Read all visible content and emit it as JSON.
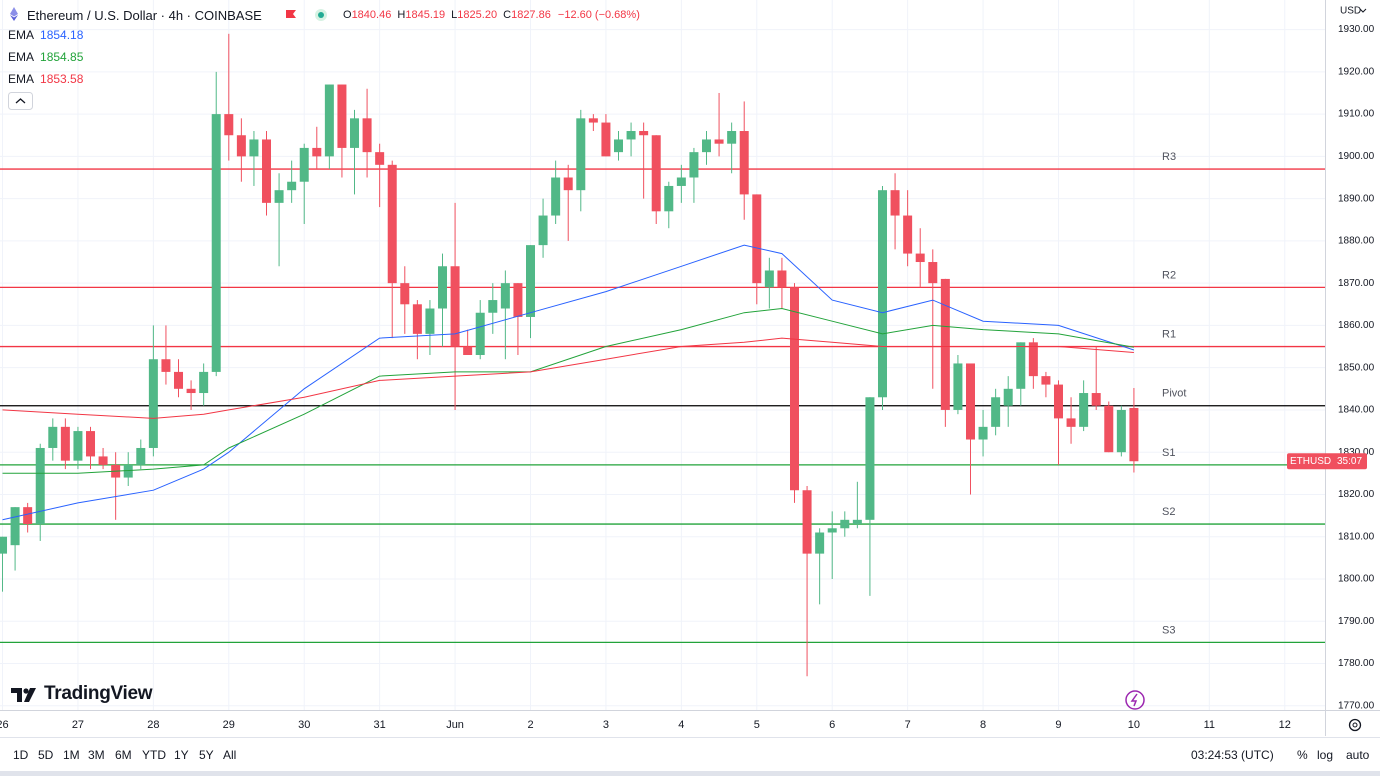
{
  "header": {
    "title": "Ethereum / U.S. Dollar · 4h · COINBASE",
    "o_label": "O",
    "h_label": "H",
    "l_label": "L",
    "c_label": "C",
    "open": "1840.46",
    "high": "1845.19",
    "low": "1825.20",
    "close": "1827.86",
    "change": "−12.60 (−0.68%)"
  },
  "currency": "USD",
  "brand": "TradingView",
  "price_tag": {
    "symbol": "ETHUSD",
    "countdown": "35:07"
  },
  "toolbar": {
    "ranges": [
      "1D",
      "5D",
      "1M",
      "3M",
      "6M",
      "YTD",
      "1Y",
      "5Y",
      "All"
    ],
    "clock": "03:24:53 (UTC)",
    "options": [
      "%",
      "log",
      "auto"
    ]
  },
  "chart_data": {
    "type": "candlestick",
    "categories": [
      null,
      null,
      null,
      null,
      null,
      null,
      null,
      null,
      null,
      null,
      null,
      null,
      null,
      null,
      null,
      null,
      null,
      null,
      null,
      null,
      null,
      null,
      null,
      null,
      null,
      null,
      null,
      null,
      null,
      null,
      null,
      null,
      null,
      null,
      null,
      null,
      null,
      null,
      null,
      null,
      null,
      null,
      null,
      null,
      null,
      null,
      null,
      null,
      null,
      null,
      null,
      null,
      null,
      null,
      null,
      null,
      null,
      null,
      null,
      null,
      null,
      null,
      null,
      null,
      null,
      null,
      null,
      null,
      null,
      null,
      null,
      null,
      null,
      null,
      null,
      null,
      null,
      null,
      null,
      null,
      null,
      null,
      null,
      null,
      null,
      null,
      null,
      null,
      null,
      null,
      null
    ],
    "candles": {
      "up_color": "#51b887",
      "down_color": "#f0505f",
      "open": [
        1806,
        1808,
        1817,
        1813,
        1831,
        1836,
        1828,
        1835,
        1829,
        1827,
        1824,
        1827,
        1831,
        1852,
        1849,
        1845,
        1844,
        1849,
        1910,
        1905,
        1900,
        1904,
        1889,
        1892,
        1894,
        1902,
        1900,
        1917,
        1902,
        1909,
        1901,
        1898,
        1870,
        1865,
        1858,
        1864,
        1874,
        1855,
        1853,
        1863,
        1864,
        1870,
        1862,
        1879,
        1886,
        1895,
        1892,
        1909,
        1908,
        1901,
        1904,
        1906,
        1905,
        1887,
        1893,
        1895,
        1901,
        1904,
        1903,
        1906,
        1891,
        1869,
        1873,
        1869,
        1821,
        1806,
        1811,
        1812,
        1813,
        1814,
        1843,
        1892,
        1886,
        1877,
        1875,
        1871,
        1840,
        1851,
        1833,
        1836,
        1841,
        1845,
        1856,
        1848,
        1846,
        1838,
        1836,
        1844,
        1841,
        1830,
        1840.46
      ],
      "high": [
        1810,
        1817,
        1818,
        1832,
        1838,
        1838,
        1836,
        1836,
        1831,
        1830,
        1830,
        1833,
        1860,
        1860,
        1852,
        1847,
        1851,
        1920,
        1929,
        1909,
        1906,
        1906,
        1896,
        1899,
        1903,
        1907,
        1917,
        1917,
        1911,
        1916,
        1903,
        1899,
        1874,
        1866,
        1866,
        1877,
        1889,
        1859,
        1866,
        1870,
        1873,
        1870,
        1879,
        1890,
        1899,
        1898,
        1911,
        1910,
        1910,
        1906,
        1908,
        1908,
        1905,
        1894,
        1898,
        1902,
        1906,
        1915,
        1908,
        1913,
        1891,
        1876,
        1876,
        1870,
        1822,
        1812,
        1816,
        1816,
        1823,
        1843,
        1893,
        1896,
        1892,
        1883,
        1878,
        1871,
        1853,
        1851,
        1840,
        1845,
        1848,
        1856,
        1857,
        1849,
        1847,
        1843,
        1847,
        1855,
        1842,
        1841,
        1845.19
      ],
      "low": [
        1797,
        1802,
        1811,
        1809,
        1828,
        1826,
        1826,
        1826,
        1826,
        1814,
        1822,
        1826,
        1829,
        1846,
        1843,
        1840,
        1841,
        1848,
        1899,
        1894,
        1893,
        1886,
        1874,
        1889,
        1884,
        1897,
        1897,
        1895,
        1891,
        1895,
        1888,
        1857,
        1858,
        1852,
        1853,
        1855,
        1840,
        1853,
        1852,
        1858,
        1852,
        1853,
        1857,
        1876,
        1884,
        1880,
        1887,
        1906,
        1900,
        1899,
        1900,
        1890,
        1884,
        1883,
        1889,
        1889,
        1898,
        1900,
        1896,
        1885,
        1865,
        1864,
        1864,
        1818,
        1777,
        1794,
        1800,
        1810,
        1812,
        1796,
        1840,
        1878,
        1874,
        1869,
        1845,
        1836,
        1839,
        1820,
        1829,
        1834,
        1836,
        1841,
        1845,
        1843,
        1827,
        1832,
        1835,
        1840,
        1830,
        1829,
        1825.2
      ],
      "close": [
        1810,
        1817,
        1813,
        1831,
        1836,
        1828,
        1835,
        1829,
        1827,
        1824,
        1827,
        1831,
        1852,
        1849,
        1845,
        1844,
        1849,
        1910,
        1905,
        1900,
        1904,
        1889,
        1892,
        1894,
        1902,
        1900,
        1917,
        1902,
        1909,
        1901,
        1898,
        1870,
        1865,
        1858,
        1864,
        1874,
        1855,
        1853,
        1863,
        1866,
        1870,
        1862,
        1879,
        1886,
        1895,
        1892,
        1909,
        1908,
        1900,
        1904,
        1906,
        1905,
        1887,
        1893,
        1895,
        1901,
        1904,
        1903,
        1906,
        1891,
        1870,
        1873,
        1869,
        1821,
        1806,
        1811,
        1812,
        1814,
        1814,
        1843,
        1892,
        1886,
        1877,
        1875,
        1870,
        1840,
        1851,
        1833,
        1836,
        1843,
        1845,
        1856,
        1848,
        1846,
        1838,
        1836,
        1844,
        1841,
        1830,
        1840,
        1827.86
      ]
    },
    "series": [
      {
        "name": "EMA",
        "color": "#2962ff",
        "x": [
          0,
          6,
          12,
          16,
          18,
          24,
          30,
          36,
          42,
          48,
          54,
          59,
          62,
          66,
          70,
          74,
          78,
          84,
          90
        ],
        "values": [
          1814,
          1818,
          1821,
          1826,
          1830,
          1845,
          1857,
          1858,
          1863,
          1868,
          1874,
          1879,
          1877,
          1866,
          1863,
          1866,
          1861,
          1860,
          1854.18
        ]
      },
      {
        "name": "EMA",
        "color": "#22a33a",
        "x": [
          0,
          6,
          12,
          16,
          18,
          24,
          30,
          36,
          42,
          48,
          54,
          59,
          62,
          66,
          70,
          74,
          78,
          84,
          90
        ],
        "values": [
          1825,
          1825,
          1826,
          1827,
          1831,
          1839,
          1848,
          1849,
          1849,
          1855,
          1859,
          1863,
          1864,
          1861,
          1858,
          1860,
          1859,
          1858,
          1854.85
        ]
      },
      {
        "name": "EMA",
        "color": "#f23645",
        "x": [
          0,
          6,
          12,
          16,
          18,
          24,
          30,
          36,
          42,
          48,
          54,
          59,
          62,
          66,
          70,
          74,
          78,
          84,
          90
        ],
        "values": [
          1840,
          1839,
          1838,
          1839,
          1840,
          1843,
          1847,
          1848,
          1849,
          1852,
          1855,
          1856,
          1857,
          1856,
          1855,
          1855,
          1855,
          1855,
          1853.58
        ]
      }
    ],
    "levels": [
      {
        "name": "R3",
        "value": 1897,
        "color": "#f23645"
      },
      {
        "name": "R2",
        "value": 1869,
        "color": "#f23645"
      },
      {
        "name": "R1",
        "value": 1855,
        "color": "#f23645"
      },
      {
        "name": "Pivot",
        "value": 1841,
        "color": "#000000"
      },
      {
        "name": "S1",
        "value": 1827,
        "color": "#22a33a"
      },
      {
        "name": "S2",
        "value": 1813,
        "color": "#22a33a"
      },
      {
        "name": "S3",
        "value": 1785,
        "color": "#22a33a"
      }
    ],
    "xlim": [
      -0.2,
      105.2
    ],
    "xticks": [
      {
        "value": 0,
        "label": "26"
      },
      {
        "value": 6,
        "label": "27"
      },
      {
        "value": 12,
        "label": "28"
      },
      {
        "value": 18,
        "label": "29"
      },
      {
        "value": 24,
        "label": "30"
      },
      {
        "value": 30,
        "label": "31"
      },
      {
        "value": 36,
        "label": "Jun"
      },
      {
        "value": 42,
        "label": "2"
      },
      {
        "value": 48,
        "label": "3"
      },
      {
        "value": 54,
        "label": "4"
      },
      {
        "value": 60,
        "label": "5"
      },
      {
        "value": 66,
        "label": "6"
      },
      {
        "value": 72,
        "label": "7"
      },
      {
        "value": 78,
        "label": "8"
      },
      {
        "value": 84,
        "label": "9"
      },
      {
        "value": 90,
        "label": "10"
      },
      {
        "value": 96,
        "label": "11"
      },
      {
        "value": 102,
        "label": "12"
      }
    ],
    "ylim": [
      1769,
      1937
    ],
    "yticks": [
      {
        "value": 1770,
        "label": "1770.00"
      },
      {
        "value": 1780,
        "label": "1780.00"
      },
      {
        "value": 1790,
        "label": "1790.00"
      },
      {
        "value": 1800,
        "label": "1800.00"
      },
      {
        "value": 1810,
        "label": "1810.00"
      },
      {
        "value": 1820,
        "label": "1820.00"
      },
      {
        "value": 1830,
        "label": "1830.00"
      },
      {
        "value": 1840,
        "label": "1840.00"
      },
      {
        "value": 1850,
        "label": "1850.00"
      },
      {
        "value": 1860,
        "label": "1860.00"
      },
      {
        "value": 1870,
        "label": "1870.00"
      },
      {
        "value": 1880,
        "label": "1880.00"
      },
      {
        "value": 1890,
        "label": "1890.00"
      },
      {
        "value": 1900,
        "label": "1900.00"
      },
      {
        "value": 1910,
        "label": "1910.00"
      },
      {
        "value": 1920,
        "label": "1920.00"
      },
      {
        "value": 1930,
        "label": "1930.00"
      }
    ],
    "grid": true
  }
}
